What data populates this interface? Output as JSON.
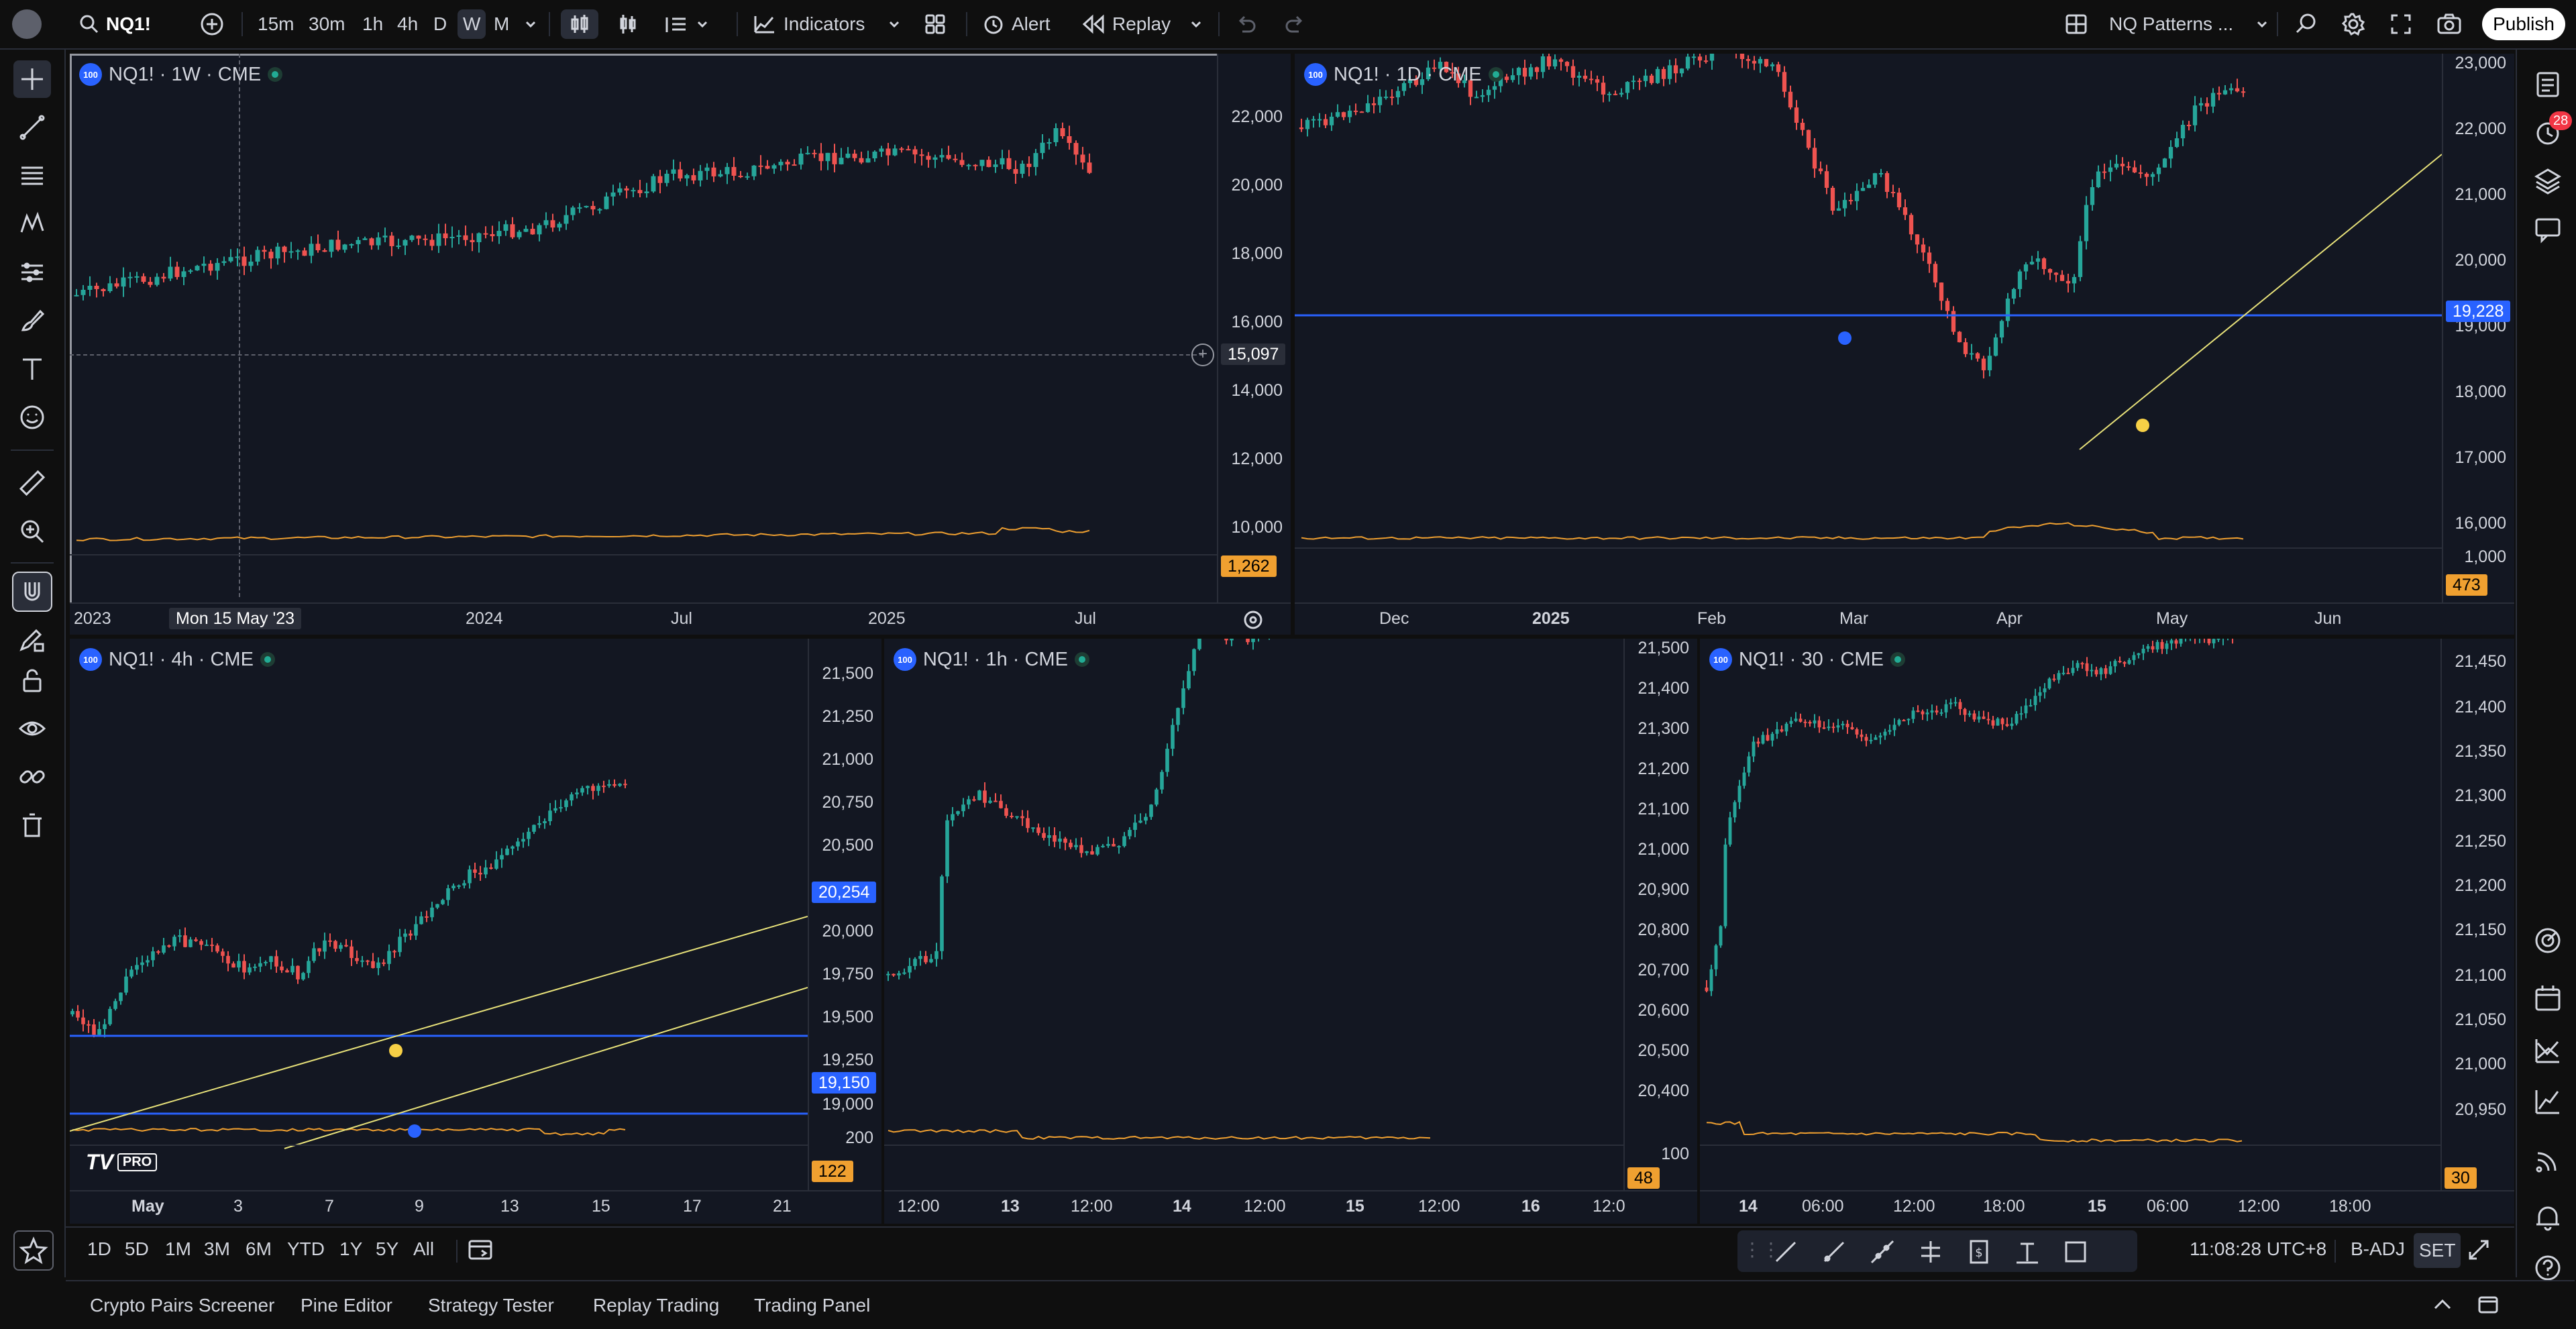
{
  "topbar": {
    "symbol": "NQ1!",
    "intervals": [
      "15m",
      "30m",
      "1h",
      "4h",
      "D",
      "W",
      "M"
    ],
    "active_interval": "W",
    "indicators_label": "Indicators",
    "alert_label": "Alert",
    "replay_label": "Replay",
    "layout_name": "NQ Patterns ...",
    "publish_label": "Publish"
  },
  "right_toolbar": {
    "notification_count": "28"
  },
  "colors": {
    "up": "#26a69a",
    "down": "#ef5350",
    "blue_line": "#2962ff",
    "trend_line": "#e8e27a",
    "volume_line": "#f0a030",
    "bg": "#131722"
  },
  "panes": [
    {
      "id": "weekly",
      "title": "NQ1! · 1W · CME",
      "price_labels": [
        "22,000",
        "20,000",
        "18,000",
        "16,000",
        "14,000",
        "12,000",
        "10,000"
      ],
      "crosshair_price": "15,097",
      "crosshair_time": "Mon 15 May '23",
      "volume_value": "1,262",
      "time_labels": [
        "2023",
        "2024",
        "Jul",
        "2025",
        "Jul"
      ]
    },
    {
      "id": "daily",
      "title": "NQ1! · 1D · CME",
      "price_labels": [
        "23,000",
        "22,000",
        "21,000",
        "20,000",
        "19,000",
        "18,000",
        "17,000",
        "16,000",
        "1,000"
      ],
      "level_price": "19,228",
      "volume_value": "473",
      "time_labels": [
        "Dec",
        "2025",
        "Feb",
        "Mar",
        "Apr",
        "May",
        "Jun"
      ]
    },
    {
      "id": "h4",
      "title": "NQ1! · 4h · CME",
      "price_labels": [
        "21,500",
        "21,250",
        "21,000",
        "20,750",
        "20,500",
        "20,000",
        "19,750",
        "19,500",
        "19,250",
        "19,000",
        "200"
      ],
      "level_upper": "20,254",
      "level_lower": "19,150",
      "volume_value": "122",
      "time_labels": [
        "May",
        "3",
        "7",
        "9",
        "13",
        "15",
        "17",
        "21"
      ]
    },
    {
      "id": "h1",
      "title": "NQ1! · 1h · CME",
      "price_labels": [
        "21,500",
        "21,400",
        "21,300",
        "21,200",
        "21,100",
        "21,000",
        "20,900",
        "20,800",
        "20,700",
        "20,600",
        "20,500",
        "20,400",
        "100"
      ],
      "volume_value": "48",
      "time_labels": [
        "12:00",
        "13",
        "12:00",
        "14",
        "12:00",
        "15",
        "12:00",
        "16",
        "12:0"
      ]
    },
    {
      "id": "m30",
      "title": "NQ1! · 30 · CME",
      "price_labels": [
        "21,450",
        "21,400",
        "21,350",
        "21,300",
        "21,250",
        "21,200",
        "21,150",
        "21,100",
        "21,050",
        "21,000",
        "20,950"
      ],
      "volume_value": "30",
      "time_labels": [
        "14",
        "06:00",
        "12:00",
        "18:00",
        "15",
        "06:00",
        "12:00",
        "18:00"
      ]
    }
  ],
  "range_bar": {
    "ranges": [
      "1D",
      "5D",
      "1M",
      "3M",
      "6M",
      "YTD",
      "1Y",
      "5Y",
      "All"
    ],
    "clock": "11:08:28 UTC+8",
    "adj_label": "B-ADJ",
    "set_label": "SET"
  },
  "bottom_tabs": [
    "Crypto Pairs Screener",
    "Pine Editor",
    "Strategy Tester",
    "Replay Trading",
    "Trading Panel"
  ],
  "logo_text": "PRO"
}
